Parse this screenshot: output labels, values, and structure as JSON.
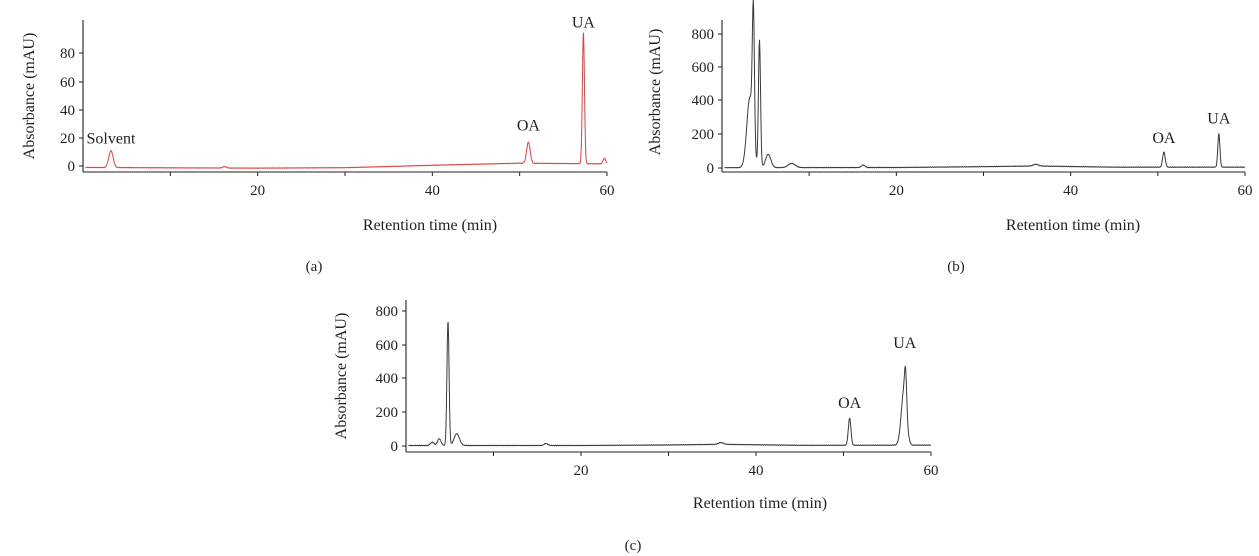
{
  "chart_data": [
    {
      "type": "line",
      "panel_label": "(a)",
      "xlabel": "Retention time (min)",
      "ylabel": "Absorbance (mAU)",
      "xlim": [
        0,
        60
      ],
      "ylim": [
        -3,
        100
      ],
      "xticks": [
        20,
        40,
        60
      ],
      "yticks": [
        0,
        20,
        40,
        60,
        80
      ],
      "color": "#e0403e",
      "baseline": [
        [
          0,
          -1
        ],
        [
          10,
          -1.3
        ],
        [
          20,
          -1.5
        ],
        [
          30,
          -1.2
        ],
        [
          40,
          0.5
        ],
        [
          50,
          2
        ],
        [
          60,
          1.5
        ]
      ],
      "peaks": [
        {
          "rt": 3.2,
          "height": 12,
          "width": 0.25
        },
        {
          "rt": 16.2,
          "height": 1,
          "width": 0.2
        },
        {
          "rt": 51.0,
          "height": 15,
          "width": 0.2
        },
        {
          "rt": 57.3,
          "height": 93,
          "width": 0.12
        },
        {
          "rt": 59.7,
          "height": 4,
          "width": 0.15
        }
      ],
      "annotations": [
        {
          "text": "Solvent",
          "x": 3.2,
          "y": 16
        },
        {
          "text": "OA",
          "x": 51.0,
          "y": 25
        },
        {
          "text": "UA",
          "x": 57.3,
          "y": 98
        }
      ]
    },
    {
      "type": "line",
      "panel_label": "(b)",
      "xlabel": "Retention time (min)",
      "ylabel": "Absorbance (mAU)",
      "xlim": [
        0,
        60
      ],
      "ylim": [
        -30,
        870
      ],
      "xticks": [
        20,
        40,
        60
      ],
      "yticks": [
        0,
        200,
        400,
        600,
        800
      ],
      "color": "#3a3a3a",
      "baseline": [
        [
          0,
          2
        ],
        [
          20,
          3
        ],
        [
          30,
          8
        ],
        [
          36,
          12
        ],
        [
          45,
          5
        ],
        [
          60,
          5
        ]
      ],
      "peaks": [
        {
          "rt": 3.2,
          "height": 420,
          "width": 0.35
        },
        {
          "rt": 3.6,
          "height": 780,
          "width": 0.12
        },
        {
          "rt": 4.3,
          "height": 760,
          "width": 0.12
        },
        {
          "rt": 5.3,
          "height": 80,
          "width": 0.3
        },
        {
          "rt": 8.0,
          "height": 25,
          "width": 0.4
        },
        {
          "rt": 16.2,
          "height": 15,
          "width": 0.2
        },
        {
          "rt": 36.0,
          "height": 10,
          "width": 0.3
        },
        {
          "rt": 50.7,
          "height": 90,
          "width": 0.15
        },
        {
          "rt": 57.0,
          "height": 200,
          "width": 0.12
        }
      ],
      "annotations": [
        {
          "text": "OA",
          "x": 50.7,
          "y": 150
        },
        {
          "text": "UA",
          "x": 57.0,
          "y": 265
        }
      ]
    },
    {
      "type": "line",
      "panel_label": "(c)",
      "xlabel": "Retention time (min)",
      "ylabel": "Absorbance (mAU)",
      "xlim": [
        0,
        60
      ],
      "ylim": [
        -30,
        870
      ],
      "xticks": [
        20,
        40,
        60
      ],
      "yticks": [
        0,
        200,
        400,
        600,
        800
      ],
      "color": "#3a3a3a",
      "baseline": [
        [
          0,
          3
        ],
        [
          20,
          3
        ],
        [
          30,
          6
        ],
        [
          36,
          10
        ],
        [
          45,
          4
        ],
        [
          60,
          5
        ]
      ],
      "peaks": [
        {
          "rt": 3.0,
          "height": 20,
          "width": 0.2
        },
        {
          "rt": 3.8,
          "height": 40,
          "width": 0.2
        },
        {
          "rt": 4.8,
          "height": 740,
          "width": 0.12
        },
        {
          "rt": 5.8,
          "height": 70,
          "width": 0.3
        },
        {
          "rt": 16.0,
          "height": 12,
          "width": 0.2
        },
        {
          "rt": 36.0,
          "height": 10,
          "width": 0.3
        },
        {
          "rt": 50.7,
          "height": 160,
          "width": 0.15
        },
        {
          "rt": 56.9,
          "height": 320,
          "width": 0.3
        },
        {
          "rt": 57.1,
          "height": 200,
          "width": 0.12
        }
      ],
      "annotations": [
        {
          "text": "OA",
          "x": 50.7,
          "y": 225
        },
        {
          "text": "UA",
          "x": 57.0,
          "y": 580
        }
      ]
    }
  ]
}
